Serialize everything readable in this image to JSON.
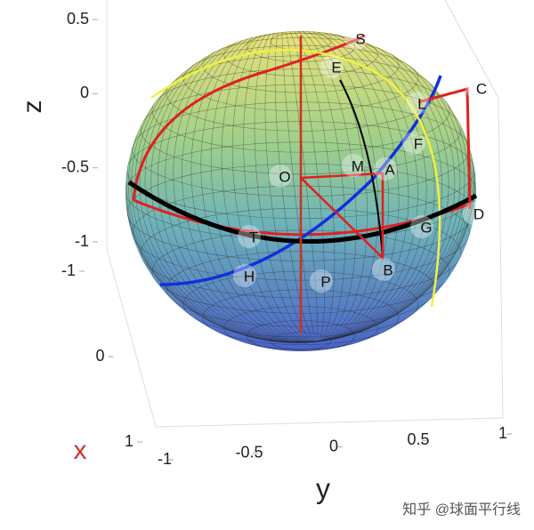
{
  "chart_data": {
    "type": "sphere3d",
    "xlabel": "x",
    "ylabel": "y",
    "zlabel": "z",
    "xlim": [
      -1,
      1
    ],
    "xticks": [
      -1,
      0,
      1
    ],
    "ylim": [
      -1,
      1
    ],
    "yticks": [
      -1,
      -0.5,
      0,
      0.5,
      1
    ],
    "zlim": [
      -1,
      0.5
    ],
    "zticks": [
      -1,
      -0.5,
      0,
      0.5
    ],
    "points": [
      "S",
      "E",
      "C",
      "L",
      "F",
      "M",
      "A",
      "O",
      "D",
      "G",
      "T",
      "H",
      "P",
      "B"
    ],
    "watermark": "知乎 @球面平行线"
  }
}
